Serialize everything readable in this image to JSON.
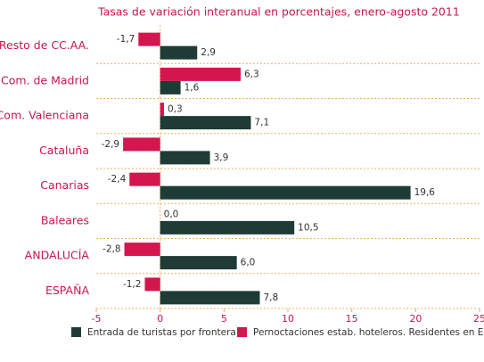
{
  "chart_data": {
    "type": "barh",
    "title": "Tasas de variación interanual en porcentajes, enero-agosto 2011",
    "categories": [
      "Resto de CC.AA.",
      "Com. de Madrid",
      "Com. Valenciana",
      "Cataluña",
      "Canarias",
      "Baleares",
      "ANDALUCÍA",
      "ESPAÑA"
    ],
    "series": [
      {
        "name": "Entrada de turistas por frontera",
        "color": "#1f3b35",
        "values": [
          2.9,
          1.6,
          7.1,
          3.9,
          19.6,
          10.5,
          6.0,
          7.8
        ],
        "value_labels": [
          "2,9",
          "1,6",
          "7,1",
          "3,9",
          "19,6",
          "10,5",
          "6,0",
          "7,8"
        ]
      },
      {
        "name": "Pernoctaciones estab. hoteleros. Residentes en España",
        "color": "#d3164d",
        "values": [
          -1.7,
          6.3,
          0.3,
          -2.9,
          -2.4,
          0.0,
          -2.8,
          -1.2
        ],
        "value_labels": [
          "-1,7",
          "6,3",
          "0,3",
          "-2,9",
          "-2,4",
          "0,0",
          "-2,8",
          "-1,2"
        ]
      }
    ],
    "xlim": [
      -5,
      25
    ],
    "xticks": [
      -5,
      0,
      5,
      10,
      15,
      20,
      25
    ]
  }
}
